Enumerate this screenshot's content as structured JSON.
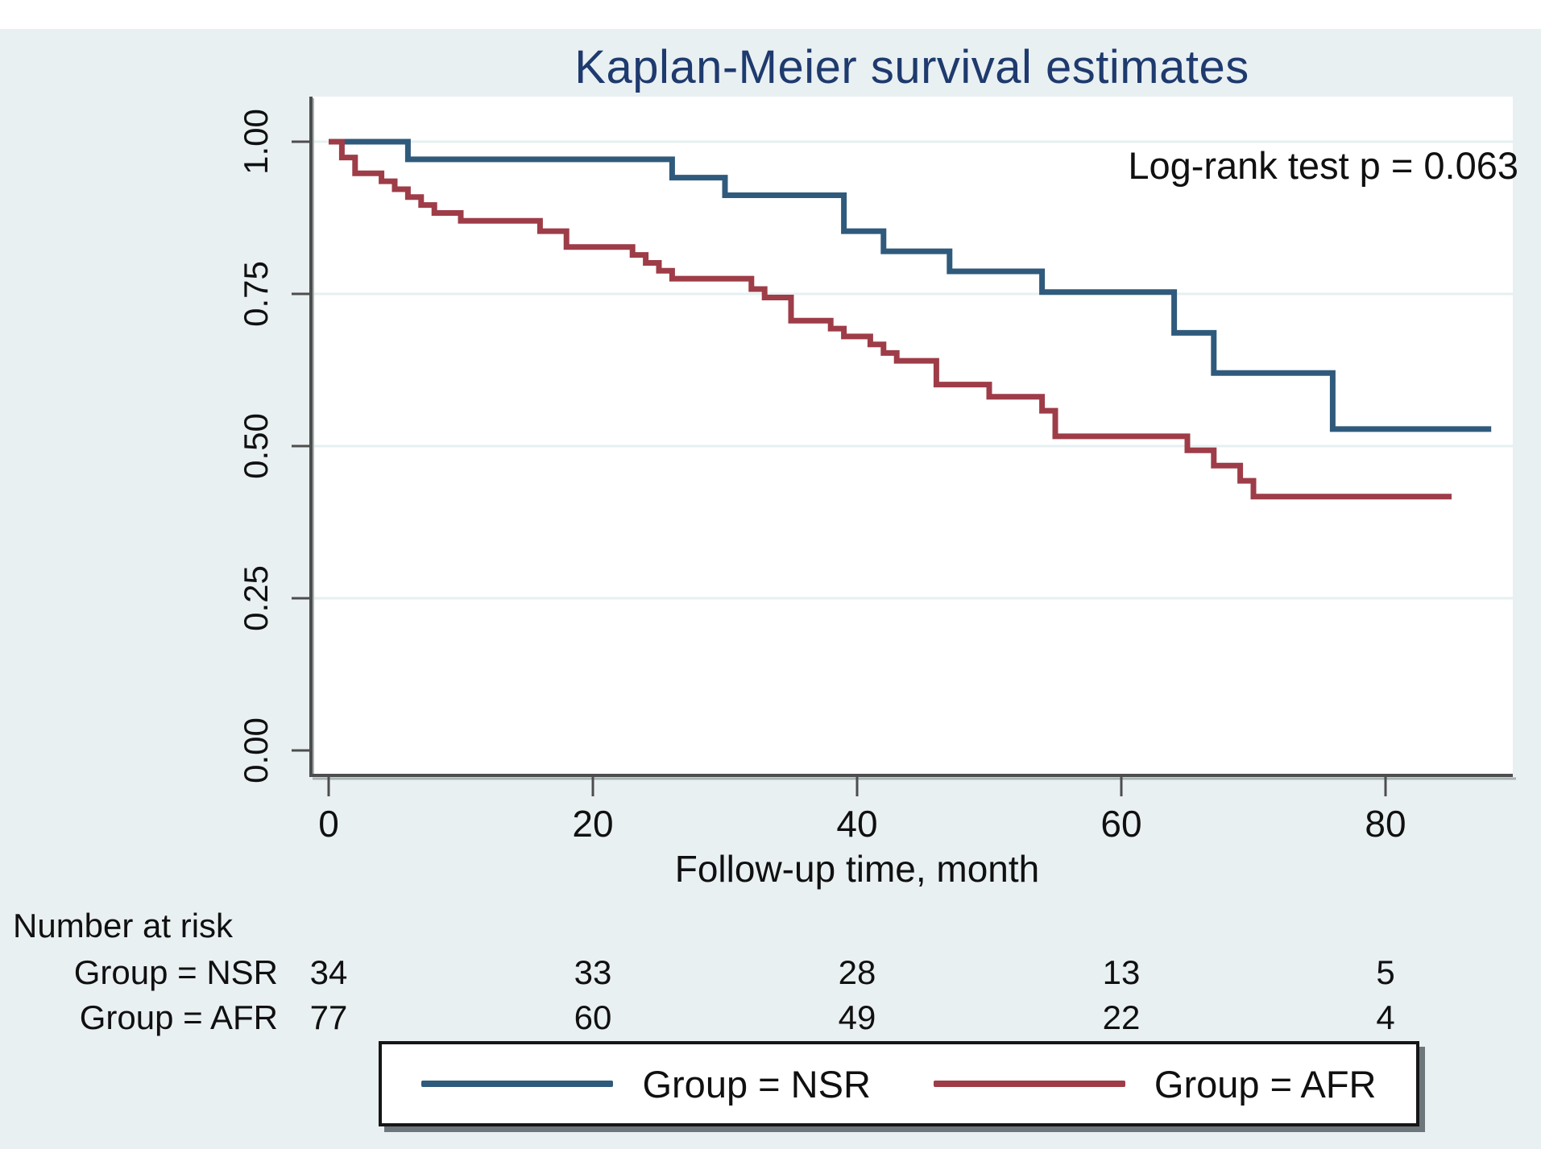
{
  "title": "Kaplan-Meier survival estimates",
  "annotation": "Log-rank test p = 0.063",
  "colors": {
    "nsr_line": "#2f5a7c",
    "afr_line": "#9e3c48",
    "title_text": "#1e3a6e",
    "axis": "#4d4d4d",
    "axis_shadow": "#a7b2b4",
    "grid": "#e6f0f0",
    "plot_bg": "#ffffff",
    "outer_bg": "#e9f0f2"
  },
  "chart_data": {
    "type": "line",
    "subtype": "kaplan-meier-step",
    "title": "Kaplan-Meier survival estimates",
    "xlabel": "Follow-up time, month",
    "ylabel": "",
    "xlim": [
      0,
      88
    ],
    "ylim": [
      0.0,
      1.0
    ],
    "xticks": [
      "0",
      "20",
      "40",
      "60",
      "80"
    ],
    "xtick_values": [
      0,
      20,
      40,
      60,
      80
    ],
    "yticks": [
      "0.00",
      "0.25",
      "0.50",
      "0.75",
      "1.00"
    ],
    "ytick_values": [
      0.0,
      0.25,
      0.5,
      0.75,
      1.0
    ],
    "grid": "horizontal",
    "annotation": "Log-rank test p = 0.063",
    "legend_position": "bottom",
    "series": [
      {
        "name": "Group = NSR",
        "color": "#2f5a7c",
        "end_time": 88,
        "points": [
          [
            0,
            1.0
          ],
          [
            6,
            0.971
          ],
          [
            26,
            0.941
          ],
          [
            30,
            0.912
          ],
          [
            39,
            0.853
          ],
          [
            42,
            0.82
          ],
          [
            47,
            0.787
          ],
          [
            54,
            0.753
          ],
          [
            64,
            0.686
          ],
          [
            67,
            0.62
          ],
          [
            76,
            0.528
          ]
        ]
      },
      {
        "name": "Group = AFR",
        "color": "#9e3c48",
        "end_time": 85,
        "points": [
          [
            0,
            1.0
          ],
          [
            1,
            0.974
          ],
          [
            2,
            0.948
          ],
          [
            4,
            0.935
          ],
          [
            5,
            0.922
          ],
          [
            6,
            0.909
          ],
          [
            7,
            0.896
          ],
          [
            8,
            0.883
          ],
          [
            10,
            0.87
          ],
          [
            16,
            0.853
          ],
          [
            18,
            0.827
          ],
          [
            23,
            0.814
          ],
          [
            24,
            0.801
          ],
          [
            25,
            0.788
          ],
          [
            26,
            0.775
          ],
          [
            32,
            0.758
          ],
          [
            33,
            0.744
          ],
          [
            35,
            0.706
          ],
          [
            38,
            0.693
          ],
          [
            39,
            0.68
          ],
          [
            41,
            0.667
          ],
          [
            42,
            0.653
          ],
          [
            43,
            0.64
          ],
          [
            46,
            0.601
          ],
          [
            50,
            0.581
          ],
          [
            54,
            0.558
          ],
          [
            55,
            0.516
          ],
          [
            65,
            0.493
          ],
          [
            67,
            0.468
          ],
          [
            69,
            0.443
          ],
          [
            70,
            0.417
          ]
        ]
      }
    ]
  },
  "risk_table": {
    "heading": "Number at risk",
    "times": [
      0,
      20,
      40,
      60,
      80
    ],
    "rows": [
      {
        "label": "Group = NSR",
        "values": [
          "34",
          "33",
          "28",
          "13",
          "5"
        ]
      },
      {
        "label": "Group = AFR",
        "values": [
          "77",
          "60",
          "49",
          "22",
          "4"
        ]
      }
    ]
  },
  "legend": {
    "entries": [
      {
        "label": "Group = NSR",
        "color": "#2f5a7c"
      },
      {
        "label": "Group = AFR",
        "color": "#9e3c48"
      }
    ]
  }
}
